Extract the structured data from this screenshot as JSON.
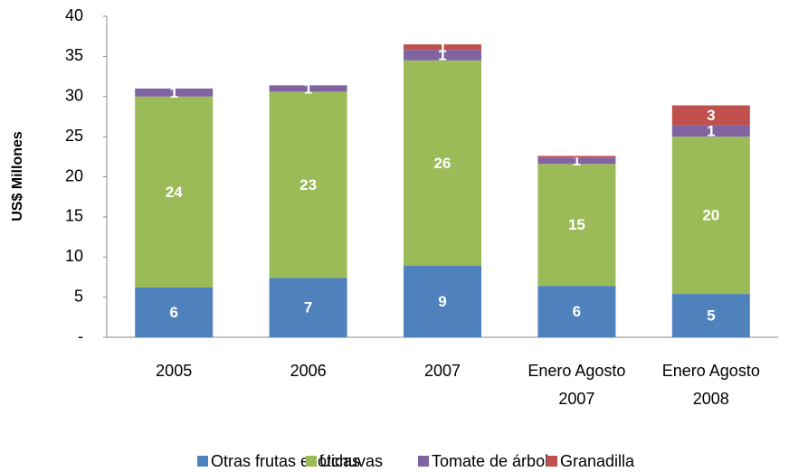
{
  "chart_data": {
    "type": "stacked_bar",
    "y_label": "US$ Millones",
    "categories": [
      "2005",
      "2006",
      "2007",
      "Enero Agosto 2007",
      "Enero Agosto 2008"
    ],
    "series": [
      {
        "name": "Otras frutas exóticas",
        "color": "#4f81bd",
        "values": [
          6.2,
          7.4,
          8.9,
          6.4,
          5.4
        ],
        "value_labels": [
          "6",
          "7",
          "9",
          "6",
          "5"
        ]
      },
      {
        "name": "Uchuvas",
        "color": "#9bbb59",
        "values": [
          23.8,
          23.2,
          25.6,
          15.2,
          19.6
        ],
        "value_labels": [
          "24",
          "23",
          "26",
          "15",
          "20"
        ]
      },
      {
        "name": "Tomate de árbol",
        "color": "#8064a2",
        "values": [
          1.0,
          0.8,
          1.3,
          0.8,
          1.4
        ],
        "value_labels": [
          "1",
          "1",
          "1",
          "1",
          "1"
        ]
      },
      {
        "name": "Granadilla",
        "color": "#c0504d",
        "values": [
          0,
          0,
          0.7,
          0.2,
          2.5
        ],
        "value_labels": [
          null,
          null,
          "1",
          null,
          "3"
        ]
      }
    ],
    "ylim": [
      0,
      40
    ],
    "yticks": [
      {
        "value": 0,
        "label": "-"
      },
      5,
      10,
      15,
      20,
      25,
      30,
      35,
      40
    ],
    "legend": "bottom"
  }
}
